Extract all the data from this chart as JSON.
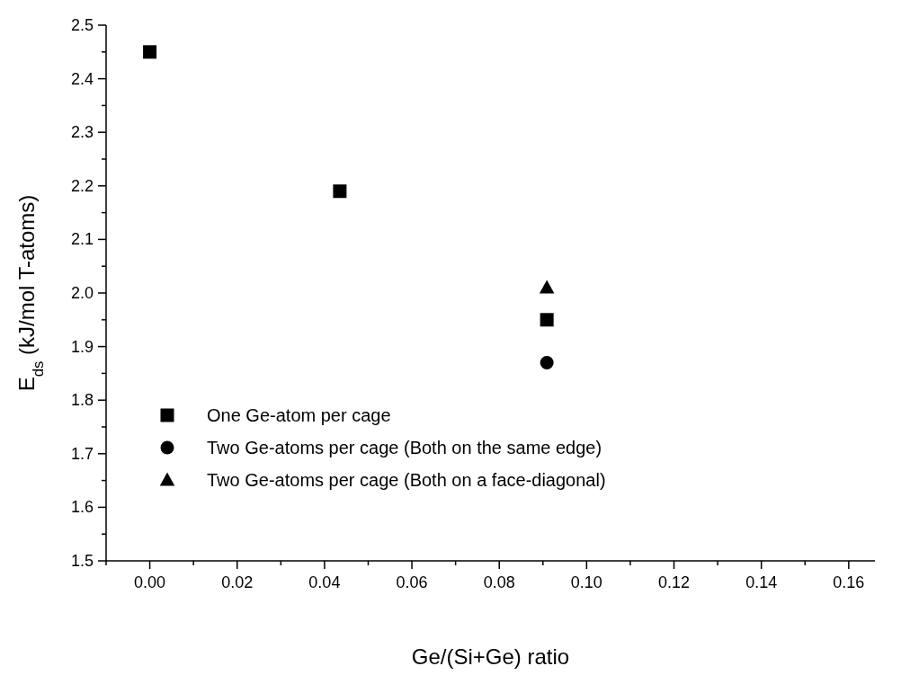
{
  "chart_data": {
    "type": "scatter",
    "xlabel": "Ge/(Si+Ge) ratio",
    "ylabel": "E$_{ds}$ (kJ/mol T-atoms)",
    "xlim": [
      -0.01,
      0.166
    ],
    "xticks": [
      {
        "value": -0.01,
        "label": null
      },
      {
        "value": 0,
        "label": "0.00"
      },
      {
        "value": 0.01,
        "label": null
      },
      {
        "value": 0.02,
        "label": "0.02"
      },
      {
        "value": 0.03,
        "label": null
      },
      {
        "value": 0.04,
        "label": "0.04"
      },
      {
        "value": 0.05,
        "label": null
      },
      {
        "value": 0.06,
        "label": "0.06"
      },
      {
        "value": 0.07,
        "label": null
      },
      {
        "value": 0.08,
        "label": "0.08"
      },
      {
        "value": 0.09,
        "label": null
      },
      {
        "value": 0.1,
        "label": "0.10"
      },
      {
        "value": 0.11,
        "label": null
      },
      {
        "value": 0.12,
        "label": "0.12"
      },
      {
        "value": 0.13,
        "label": null
      },
      {
        "value": 0.14,
        "label": "0.14"
      },
      {
        "value": 0.15,
        "label": null
      },
      {
        "value": 0.16,
        "label": "0.16"
      }
    ],
    "ylim": [
      1.5,
      2.5
    ],
    "yticks": [
      {
        "value": 1.5,
        "label": "1.5"
      },
      {
        "value": 1.55,
        "label": null
      },
      {
        "value": 1.6,
        "label": "1.6"
      },
      {
        "value": 1.65,
        "label": null
      },
      {
        "value": 1.7,
        "label": "1.7"
      },
      {
        "value": 1.75,
        "label": null
      },
      {
        "value": 1.8,
        "label": "1.8"
      },
      {
        "value": 1.85,
        "label": null
      },
      {
        "value": 1.9,
        "label": "1.9"
      },
      {
        "value": 1.95,
        "label": null
      },
      {
        "value": 2.0,
        "label": "2.0"
      },
      {
        "value": 2.05,
        "label": null
      },
      {
        "value": 2.1,
        "label": "2.1"
      },
      {
        "value": 2.15,
        "label": null
      },
      {
        "value": 2.2,
        "label": "2.2"
      },
      {
        "value": 2.25,
        "label": null
      },
      {
        "value": 2.3,
        "label": "2.3"
      },
      {
        "value": 2.35,
        "label": null
      },
      {
        "value": 2.4,
        "label": "2.4"
      },
      {
        "value": 2.45,
        "label": null
      },
      {
        "value": 2.5,
        "label": "2.5"
      }
    ],
    "legend": "bottom left",
    "grid": false,
    "series": [
      {
        "name": "One Ge-atom per cage",
        "color": "#000000",
        "marker": "square",
        "x": [
          0,
          0.0435,
          0.0909
        ],
        "values": [
          2.45,
          2.19,
          1.95
        ]
      },
      {
        "name": "Two Ge-atoms per cage (Both on the same edge)",
        "color": "#000000",
        "marker": "circle",
        "x": [
          0.0909
        ],
        "values": [
          1.87
        ]
      },
      {
        "name": "Two Ge-atoms per cage (Both on a face-diagonal)",
        "color": "#000000",
        "marker": "triangle",
        "x": [
          0.0909
        ],
        "values": [
          2.01
        ]
      }
    ]
  }
}
